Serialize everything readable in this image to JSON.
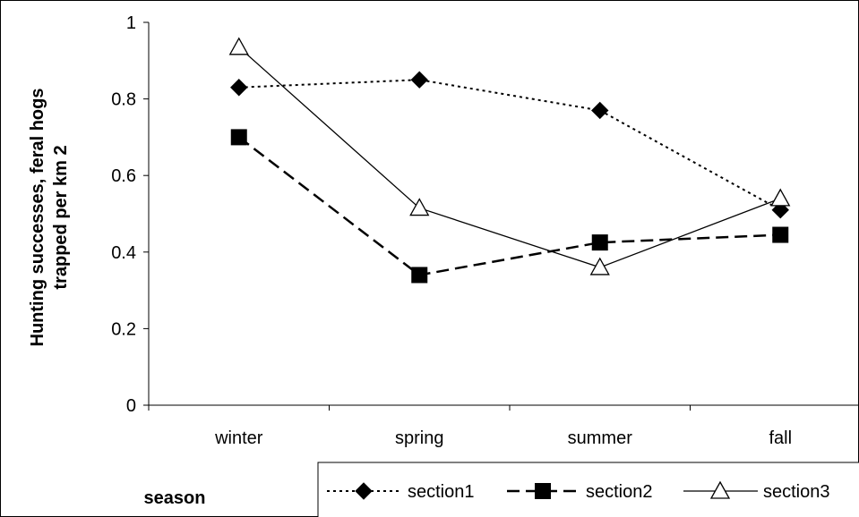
{
  "chart_data": {
    "type": "line",
    "title": "",
    "ylabel": "Hunting successes, feral hogs trapped per km 2",
    "ylabel_lines": [
      "Hunting successes, feral hogs",
      "trapped per km 2"
    ],
    "xlabel": "season",
    "categories": [
      "winter",
      "spring",
      "summer",
      "fall"
    ],
    "ylim": [
      0,
      1
    ],
    "yticks": [
      0,
      0.2,
      0.4,
      0.6,
      0.8,
      1
    ],
    "ytick_labels": [
      "0",
      "0.2",
      "0.4",
      "0.6",
      "0.8",
      "1"
    ],
    "grid": false,
    "legend_position": "bottom",
    "series": [
      {
        "name": "section1",
        "values": [
          0.83,
          0.85,
          0.77,
          0.51
        ],
        "marker": "diamond",
        "line": "dotted",
        "color": "#000000"
      },
      {
        "name": "section2",
        "values": [
          0.7,
          0.34,
          0.425,
          0.445
        ],
        "marker": "square",
        "line": "dashed",
        "color": "#000000"
      },
      {
        "name": "section3",
        "values": [
          0.935,
          0.515,
          0.36,
          0.54
        ],
        "marker": "triangle",
        "line": "solid",
        "color": "#000000"
      }
    ]
  }
}
